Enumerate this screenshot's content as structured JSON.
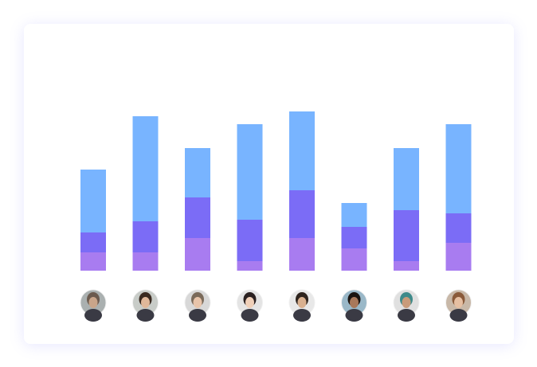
{
  "chart_data": {
    "type": "stacked-bar",
    "categories": [
      null,
      null,
      null,
      null,
      null,
      null,
      null,
      null
    ],
    "series": [
      {
        "color": "#a87cf0",
        "values": [
          23,
          23,
          41,
          12,
          41,
          28,
          12,
          35
        ]
      },
      {
        "color": "#7b6cf6",
        "values": [
          25,
          39,
          51,
          52,
          60,
          27,
          64,
          37
        ]
      },
      {
        "color": "#78b4ff",
        "values": [
          79,
          132,
          62,
          120,
          99,
          30,
          78,
          112
        ]
      }
    ],
    "ylim": [
      0,
      200
    ]
  }
}
